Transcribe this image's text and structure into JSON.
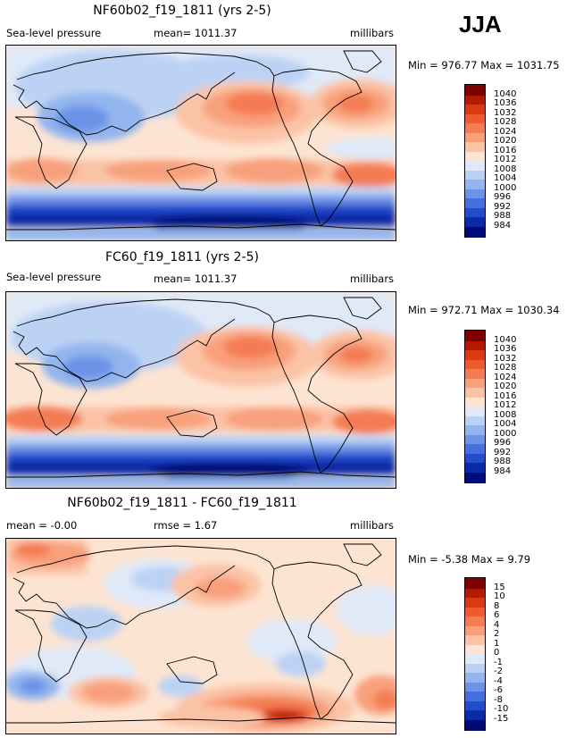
{
  "season": "JJA",
  "panels": [
    {
      "title": "NF60b02_f19_1811 (yrs 2-5)",
      "left": "Sea-level pressure",
      "middle": "mean=  1011.37",
      "right": "millibars",
      "minmax": "Min = 976.77 Max = 1031.75",
      "legend": [
        "1040",
        "1036",
        "1032",
        "1028",
        "1024",
        "1020",
        "1016",
        "1012",
        "1008",
        "1004",
        "1000",
        "996",
        "992",
        "988",
        "984"
      ]
    },
    {
      "title": "FC60_f19_1811 (yrs 2-5)",
      "left": "Sea-level pressure",
      "middle": "mean=  1011.37",
      "right": "millibars",
      "minmax": "Min = 972.71 Max = 1030.34",
      "legend": [
        "1040",
        "1036",
        "1032",
        "1028",
        "1024",
        "1020",
        "1016",
        "1012",
        "1008",
        "1004",
        "1000",
        "996",
        "992",
        "988",
        "984"
      ]
    },
    {
      "title": "NF60b02_f19_1811 - FC60_f19_1811",
      "left": "mean =   -0.00",
      "middle": "rmse =    1.67",
      "right": "millibars",
      "minmax": "Min =  -5.38 Max =    9.79",
      "legend": [
        "15",
        "10",
        "8",
        "6",
        "4",
        "2",
        "1",
        "0",
        "-1",
        "-2",
        "-4",
        "-6",
        "-8",
        "-10",
        "-15"
      ]
    }
  ],
  "colors": {
    "scale": [
      "#7f0000",
      "#b21a00",
      "#d93a0f",
      "#ee5a2e",
      "#f47c52",
      "#f8a07c",
      "#fbc3a6",
      "#fde4d2",
      "#dfe9f8",
      "#bcd2f4",
      "#93b5ee",
      "#6c93e6",
      "#4670dd",
      "#214ccc",
      "#0a2aa8",
      "#000b7a"
    ]
  }
}
